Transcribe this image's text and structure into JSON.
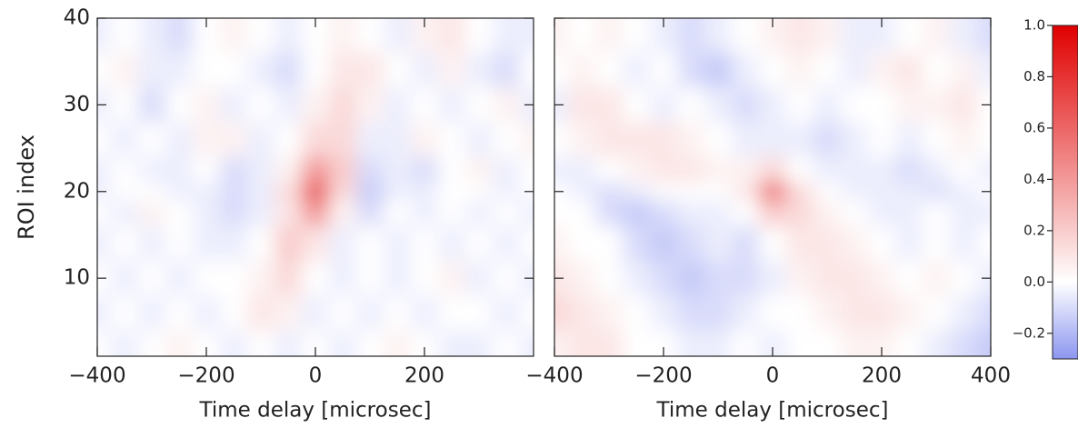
{
  "chart_data": [
    {
      "type": "heatmap",
      "ylabel": "ROI index",
      "xlabel": "Time delay [microsec]",
      "x": [
        -400,
        -350,
        -300,
        -250,
        -200,
        -150,
        -100,
        -50,
        0,
        50,
        100,
        150,
        200,
        250,
        300,
        350,
        400
      ],
      "y": [
        38,
        34,
        30,
        26,
        22,
        20,
        18,
        14,
        10,
        6,
        2
      ],
      "z": [
        [
          -0.05,
          0,
          -0.05,
          -0.1,
          0,
          0.05,
          0,
          -0.05,
          0,
          0.05,
          0,
          -0.05,
          0.05,
          0.1,
          0,
          -0.05,
          -0.05
        ],
        [
          0,
          0.05,
          -0.05,
          -0.05,
          0,
          0,
          -0.05,
          -0.1,
          0,
          0.1,
          0.1,
          0,
          -0.05,
          0.05,
          -0.05,
          -0.1,
          0
        ],
        [
          -0.05,
          0,
          -0.1,
          0,
          0.05,
          -0.05,
          0,
          -0.05,
          0.05,
          0.15,
          0.05,
          -0.05,
          0,
          -0.05,
          0,
          0.05,
          -0.05
        ],
        [
          0,
          -0.05,
          0,
          -0.05,
          0.05,
          0.05,
          -0.05,
          0,
          0.15,
          0.15,
          -0.05,
          -0.05,
          0.05,
          0,
          -0.05,
          0,
          0.05
        ],
        [
          -0.05,
          0,
          -0.05,
          -0.05,
          0,
          -0.1,
          -0.05,
          0.05,
          0.4,
          0.2,
          -0.1,
          -0.05,
          -0.1,
          0,
          0.05,
          -0.05,
          0
        ],
        [
          -0.05,
          0,
          0,
          -0.05,
          -0.05,
          -0.1,
          -0.05,
          0.15,
          0.7,
          0.15,
          -0.15,
          -0.05,
          -0.05,
          0,
          0,
          -0.05,
          0
        ],
        [
          0,
          -0.05,
          0.05,
          0,
          -0.05,
          -0.1,
          -0.05,
          0.1,
          0.4,
          0.05,
          -0.1,
          0,
          -0.05,
          0,
          -0.05,
          0,
          -0.05
        ],
        [
          -0.05,
          0,
          -0.05,
          0,
          -0.05,
          -0.05,
          0,
          0.2,
          0.1,
          -0.05,
          0,
          -0.05,
          0,
          -0.05,
          0,
          -0.05,
          0
        ],
        [
          0,
          -0.05,
          0,
          -0.05,
          0,
          0,
          0.05,
          0.15,
          0,
          -0.05,
          0,
          -0.05,
          0,
          0.05,
          -0.05,
          0,
          -0.05
        ],
        [
          -0.05,
          0,
          -0.05,
          0,
          -0.05,
          0,
          0.1,
          0.05,
          -0.05,
          0,
          -0.05,
          0,
          -0.05,
          0,
          0,
          -0.05,
          0
        ],
        [
          0,
          -0.05,
          0,
          0.05,
          0,
          -0.05,
          0,
          -0.05,
          0,
          -0.05,
          0,
          0.05,
          0,
          -0.05,
          -0.05,
          0,
          -0.05
        ]
      ],
      "xlim": [
        -400,
        400
      ],
      "ylim": [
        1,
        40
      ],
      "xticks": [
        {
          "value": -400,
          "label": "−400"
        },
        {
          "value": -200,
          "label": "−200"
        },
        0,
        200
      ],
      "yticks": [
        10,
        20,
        30,
        40
      ]
    },
    {
      "type": "heatmap",
      "xlabel": "Time delay [microsec]",
      "x": [
        -400,
        -350,
        -300,
        -250,
        -200,
        -150,
        -100,
        -50,
        0,
        50,
        100,
        150,
        200,
        250,
        300,
        350,
        400
      ],
      "y": [
        38,
        34,
        30,
        26,
        22,
        20,
        18,
        14,
        10,
        6,
        2
      ],
      "z": [
        [
          0.05,
          0,
          0.05,
          0,
          -0.05,
          -0.1,
          -0.05,
          0,
          0.05,
          0.1,
          0.05,
          -0.05,
          -0.05,
          0,
          0.05,
          -0.05,
          -0.1
        ],
        [
          0,
          0.05,
          0,
          -0.05,
          0,
          -0.1,
          -0.15,
          -0.05,
          0,
          0.05,
          0,
          -0.05,
          0.05,
          0.1,
          0,
          0.05,
          -0.05
        ],
        [
          -0.05,
          0.1,
          0.1,
          0,
          -0.05,
          0,
          -0.05,
          -0.1,
          -0.05,
          0,
          -0.05,
          0,
          0,
          0.05,
          0.05,
          0.1,
          0
        ],
        [
          0,
          0.05,
          0.1,
          0.1,
          0.1,
          0.05,
          0,
          -0.05,
          -0.05,
          -0.05,
          -0.1,
          -0.05,
          0,
          -0.05,
          0,
          0.05,
          0
        ],
        [
          -0.05,
          -0.05,
          0,
          0.05,
          0.1,
          0.1,
          0.05,
          0.05,
          0.15,
          0,
          -0.05,
          -0.05,
          -0.05,
          -0.1,
          -0.05,
          0,
          -0.05
        ],
        [
          0,
          -0.05,
          -0.1,
          -0.05,
          0,
          0,
          0,
          0.1,
          0.6,
          0.15,
          0,
          -0.05,
          -0.05,
          -0.05,
          -0.1,
          -0.05,
          0
        ],
        [
          0,
          0,
          -0.1,
          -0.15,
          -0.1,
          -0.05,
          -0.05,
          0,
          0.2,
          0.15,
          0.05,
          0,
          -0.05,
          -0.05,
          0,
          -0.05,
          -0.05
        ],
        [
          0.05,
          0,
          0,
          -0.1,
          -0.15,
          -0.1,
          -0.05,
          -0.1,
          0,
          0.1,
          0.1,
          0.05,
          0,
          -0.05,
          0,
          -0.05,
          0
        ],
        [
          0.1,
          0.05,
          0,
          -0.05,
          -0.1,
          -0.15,
          -0.1,
          -0.1,
          -0.05,
          0.05,
          0.1,
          0.1,
          0.05,
          0,
          0.05,
          0,
          -0.05
        ],
        [
          0.15,
          0.1,
          0.05,
          0,
          -0.05,
          -0.1,
          -0.1,
          -0.05,
          0,
          0,
          0.05,
          0.1,
          0.1,
          0.05,
          0,
          -0.05,
          -0.1
        ],
        [
          0.05,
          0.1,
          0.1,
          0,
          0,
          -0.05,
          -0.05,
          0,
          -0.05,
          0,
          0,
          0.05,
          0.05,
          0,
          -0.05,
          -0.1,
          -0.15
        ]
      ],
      "xlim": [
        -400,
        400
      ],
      "ylim": [
        1,
        40
      ],
      "xticks": [
        {
          "value": -400,
          "label": "−400"
        },
        {
          "value": -200,
          "label": "−200"
        },
        0,
        200,
        400
      ],
      "colorbar": {
        "lim": [
          -0.3,
          1.0
        ],
        "ticks": [
          {
            "value": -0.2,
            "label": "−0.2"
          },
          {
            "value": 0,
            "label": "0.0"
          },
          0.2,
          0.4,
          0.6,
          0.8,
          {
            "value": 1,
            "label": "1.0"
          }
        ],
        "colors": [
          "#8c96f0",
          "#ffffff",
          "#e00000"
        ]
      }
    }
  ]
}
